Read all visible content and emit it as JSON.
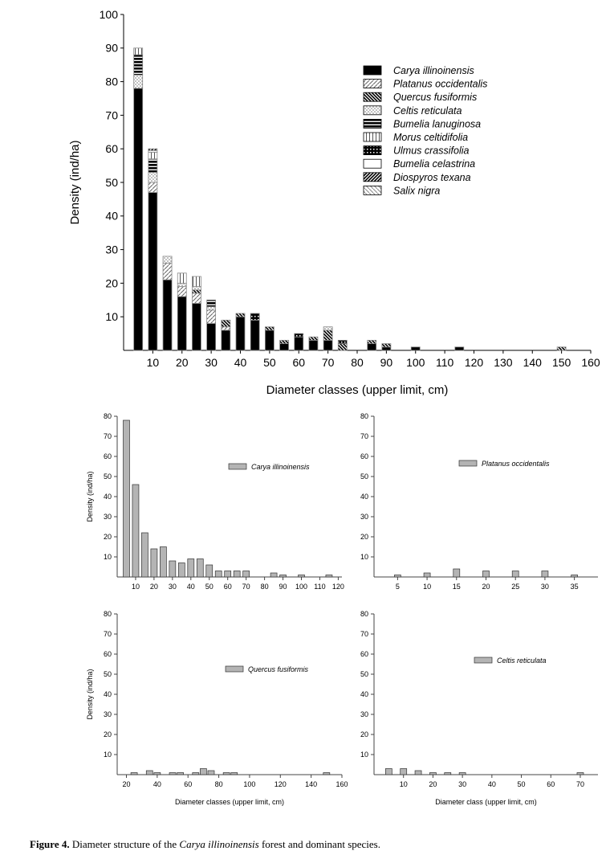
{
  "caption": {
    "label": "Figure 4.",
    "pre": " Diameter structure of the ",
    "species": "Carya illinoinensis",
    "post": " forest and dominant species."
  },
  "chart_data": [
    {
      "type": "bar",
      "stacked": true,
      "ylabel": "Density (ind/ha)",
      "xlabel": "Diameter classes (upper limit, cm)",
      "xlim": [
        0,
        160
      ],
      "ylim": [
        0,
        100
      ],
      "xticks": [
        10,
        20,
        30,
        40,
        50,
        60,
        70,
        80,
        90,
        100,
        110,
        120,
        130,
        140,
        150,
        160
      ],
      "yticks": [
        10,
        20,
        30,
        40,
        50,
        60,
        70,
        80,
        90,
        100
      ],
      "legend_position": "top-right",
      "series_names": [
        "Carya illinoinensis",
        "Platanus occidentalis",
        "Quercus fusiformis",
        "Celtis reticulata",
        "Bumelia lanuginosa",
        "Morus celtidifolia",
        "Ulmus crassifolia",
        "Bumelia celastrina",
        "Diospyros texana",
        "Salix nigra"
      ],
      "patterns": [
        "solid-black",
        "diagonal-light",
        "diagonal-dense-back",
        "dots",
        "horizontal-lines",
        "vertical-lines",
        "grid",
        "white",
        "diagonal-dense",
        "diagonal-back-light"
      ],
      "categories": [
        5,
        10,
        15,
        20,
        25,
        30,
        35,
        40,
        45,
        50,
        55,
        60,
        65,
        70,
        75,
        85,
        90,
        100,
        115,
        150
      ],
      "stacks": [
        [
          78,
          0,
          0,
          4,
          6,
          2,
          0,
          0,
          0,
          0
        ],
        [
          47,
          3,
          0,
          3,
          4,
          2,
          0,
          0.5,
          0.5,
          0
        ],
        [
          21,
          5,
          0,
          2,
          0,
          0,
          0,
          0,
          0,
          0
        ],
        [
          16,
          3,
          0,
          1,
          0,
          3,
          0,
          0,
          0,
          0
        ],
        [
          14,
          3,
          1,
          1,
          0,
          3,
          0,
          0,
          0,
          0
        ],
        [
          8,
          4,
          0,
          1,
          2,
          0,
          0,
          0,
          0,
          0
        ],
        [
          6,
          1,
          2,
          0,
          0,
          0,
          0,
          0,
          0,
          0
        ],
        [
          10,
          0,
          1,
          0,
          0,
          0,
          0,
          0,
          0,
          0
        ],
        [
          9,
          0,
          0,
          0,
          0,
          0,
          2,
          0,
          0,
          0
        ],
        [
          6,
          0,
          1,
          0,
          0,
          0,
          0,
          0,
          0,
          0
        ],
        [
          2,
          0,
          1,
          0,
          0,
          0,
          0,
          0,
          0,
          0
        ],
        [
          4,
          0,
          0,
          0,
          0,
          0,
          1,
          0,
          0,
          0
        ],
        [
          3,
          0,
          1,
          0,
          0,
          0,
          0,
          0,
          0,
          0
        ],
        [
          3,
          0,
          3,
          1,
          0,
          0,
          0,
          0,
          0,
          0
        ],
        [
          0,
          0,
          2,
          0,
          0,
          0,
          1,
          0,
          0,
          0
        ],
        [
          2,
          0,
          1,
          0,
          0,
          0,
          0,
          0,
          0,
          0
        ],
        [
          1,
          0,
          1,
          0,
          0,
          0,
          0,
          0,
          0,
          0
        ],
        [
          1,
          0,
          0,
          0,
          0,
          0,
          0,
          0,
          0,
          0
        ],
        [
          1,
          0,
          0,
          0,
          0,
          0,
          0,
          0,
          0,
          0
        ],
        [
          0,
          0,
          1,
          0,
          0,
          0,
          0,
          0,
          0,
          0
        ]
      ]
    },
    {
      "type": "bar",
      "legend": "Carya illinoinensis",
      "ylabel": "Density (ind/ha)",
      "xlabel": "",
      "xlim": [
        0,
        122
      ],
      "ylim": [
        0,
        80
      ],
      "color": "#b4b4b4",
      "xticks": [
        10,
        20,
        30,
        40,
        50,
        60,
        70,
        80,
        90,
        100,
        110,
        120
      ],
      "yticks": [
        10,
        20,
        30,
        40,
        50,
        60,
        70,
        80
      ],
      "x": [
        5,
        10,
        15,
        20,
        25,
        30,
        35,
        40,
        45,
        50,
        55,
        60,
        65,
        70,
        85,
        90,
        100,
        115
      ],
      "values": [
        78,
        46,
        22,
        14,
        15,
        8,
        7,
        9,
        9,
        6,
        3,
        3,
        3,
        3,
        2,
        1,
        1,
        1
      ]
    },
    {
      "type": "bar",
      "legend": "Platanus occidentalis",
      "ylabel": "",
      "xlabel": "",
      "xlim": [
        1,
        39
      ],
      "ylim": [
        0,
        80
      ],
      "color": "#b4b4b4",
      "xticks": [
        5,
        10,
        15,
        20,
        25,
        30,
        35
      ],
      "yticks": [
        10,
        20,
        30,
        40,
        50,
        60,
        70,
        80
      ],
      "x": [
        5,
        10,
        15,
        20,
        25,
        30,
        35
      ],
      "values": [
        1,
        2,
        4,
        3,
        3,
        3,
        1
      ]
    },
    {
      "type": "bar",
      "legend": "Quercus fusiformis",
      "ylabel": "Density (ind/ha)",
      "xlabel": "Diameter classes (upper limit, cm)",
      "xlim": [
        14,
        160
      ],
      "ylim": [
        0,
        80
      ],
      "color": "#b4b4b4",
      "xticks": [
        20,
        40,
        60,
        80,
        100,
        120,
        140,
        160
      ],
      "yticks": [
        10,
        20,
        30,
        40,
        50,
        60,
        70,
        80
      ],
      "x": [
        25,
        35,
        40,
        50,
        55,
        65,
        70,
        75,
        85,
        90,
        150
      ],
      "values": [
        1,
        2,
        1,
        1,
        1,
        1,
        3,
        2,
        1,
        1,
        1
      ]
    },
    {
      "type": "bar",
      "legend": "Celtis reticulata",
      "ylabel": "",
      "xlabel": "Diameter class (upper limit, cm)",
      "xlim": [
        0,
        76
      ],
      "ylim": [
        0,
        80
      ],
      "color": "#b4b4b4",
      "xticks": [
        10,
        20,
        30,
        40,
        50,
        60,
        70
      ],
      "yticks": [
        10,
        20,
        30,
        40,
        50,
        60,
        70,
        80
      ],
      "x": [
        5,
        10,
        15,
        20,
        25,
        30,
        70
      ],
      "values": [
        3,
        3,
        2,
        1,
        1,
        1,
        1
      ]
    }
  ]
}
